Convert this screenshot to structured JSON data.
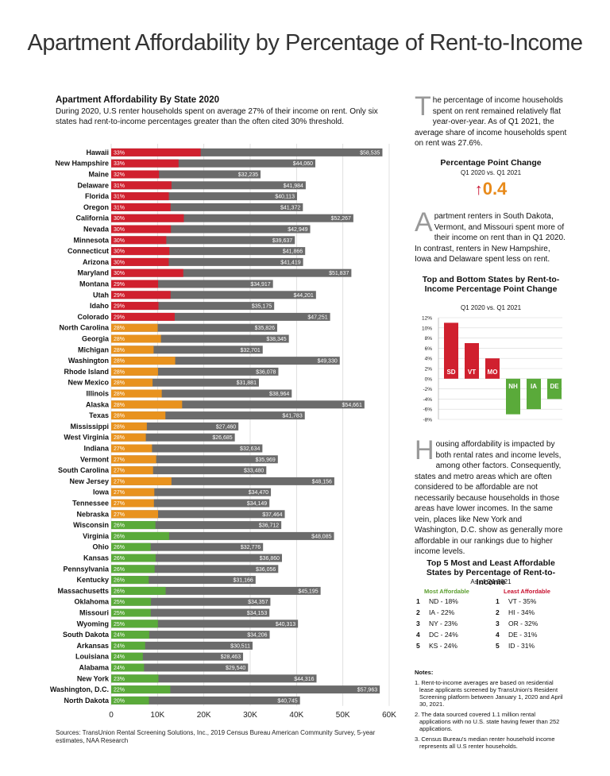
{
  "title": "Apartment Affordability by Percentage of Rent-to-Income",
  "section_title": "Apartment Affordability By State 2020",
  "section_intro": "During 2020, U.S renter households spent on average 27% of their income on rent. Only six states had rent-to-income percentages greater than the often cited 30% threshold.",
  "para1": {
    "drop": "T",
    "text": "he percentage of income households spent on rent remained relatively flat year-over-year. As of Q1 2021, the average share of income households spent on rent was 27.6%."
  },
  "point_change": {
    "title": "Percentage Point Change",
    "sub": "Q1 2020 vs. Q1 2021",
    "arrow": "↑",
    "value": "0.4"
  },
  "para2": {
    "drop": "A",
    "text": "partment renters in South Dakota, Vermont, and Missouri spent more of their income on rent than in Q1 2020. In contrast, renters in New Hampshire, Iowa and Delaware spent less on rent."
  },
  "para3": {
    "drop": "H",
    "text": "ousing affordability is impacted by both rental rates and income levels, among other factors. Consequently, states and metro areas which are often considered to be affordable are not necessarily because households in those areas have lower incomes. In the same vein, places like New York and Washington, D.C. show as generally more affordable in our rankings due to higher income levels."
  },
  "top5": {
    "title": "Top 5 Most and Least Affordable States by Percentage of Rent-to-Income",
    "sub": "As of Q1 2021",
    "most_label": "Most Affordable",
    "least_label": "Least Affordable",
    "most": [
      {
        "rank": "1",
        "text": "ND  -  18%"
      },
      {
        "rank": "2",
        "text": "IA  -  22%"
      },
      {
        "rank": "3",
        "text": "NY  -  23%"
      },
      {
        "rank": "4",
        "text": "DC  -  24%"
      },
      {
        "rank": "5",
        "text": "KS  -  24%"
      }
    ],
    "least": [
      {
        "rank": "1",
        "text": "VT  -  35%"
      },
      {
        "rank": "2",
        "text": "HI  -  34%"
      },
      {
        "rank": "3",
        "text": "OR  -  32%"
      },
      {
        "rank": "4",
        "text": "DE  -  31%"
      },
      {
        "rank": "5",
        "text": "ID  -  31%"
      }
    ]
  },
  "notes": {
    "heading": "Notes:",
    "items": [
      "1. Rent-to-income averages are based on residential lease applicants screened by TransUnion's Resident Screening platform between January 1, 2020 and April 30, 2021.",
      "2. The data sourced covered 1.1 million rental applications with no U.S. state having fewer than 252 applications.",
      "3. Census Bureau's median renter household income represents all U.S renter households."
    ]
  },
  "sources": "Sources: TransUnion Rental Screening Solutions, Inc., 2019 Census Bureau American Community Survey, 5-year estimates, NAA Research",
  "colors": {
    "red": "#d0202e",
    "orange": "#e8921e",
    "green": "#5aaa3a",
    "gray": "#6b6b6b"
  },
  "chart_data": [
    {
      "type": "bar",
      "orientation": "horizontal",
      "xlim": [
        0,
        60000
      ],
      "x_ticks": [
        "0",
        "10K",
        "20K",
        "30K",
        "40K",
        "50K",
        "60K"
      ],
      "grid": true,
      "series": [
        {
          "metric": "rent-to-income share",
          "values_key": "pct"
        },
        {
          "metric": "median renter household income",
          "values_key": "income"
        }
      ],
      "rows": [
        {
          "state": "Hawaii",
          "pct": "33%",
          "income": 58535,
          "income_label": "$58,535",
          "color": "red"
        },
        {
          "state": "New Hampshire",
          "pct": "33%",
          "income": 44060,
          "income_label": "$44,060",
          "color": "red"
        },
        {
          "state": "Maine",
          "pct": "32%",
          "income": 32235,
          "income_label": "$32,235",
          "color": "red"
        },
        {
          "state": "Delaware",
          "pct": "31%",
          "income": 41984,
          "income_label": "$41,984",
          "color": "red"
        },
        {
          "state": "Florida",
          "pct": "31%",
          "income": 40113,
          "income_label": "$40,113",
          "color": "red"
        },
        {
          "state": "Oregon",
          "pct": "31%",
          "income": 41372,
          "income_label": "$41,372",
          "color": "red"
        },
        {
          "state": "California",
          "pct": "30%",
          "income": 52267,
          "income_label": "$52,267",
          "color": "red"
        },
        {
          "state": "Nevada",
          "pct": "30%",
          "income": 42949,
          "income_label": "$42,949",
          "color": "red"
        },
        {
          "state": "Minnesota",
          "pct": "30%",
          "income": 39637,
          "income_label": "$39,637",
          "color": "red"
        },
        {
          "state": "Connecticut",
          "pct": "30%",
          "income": 41866,
          "income_label": "$41,866",
          "color": "red"
        },
        {
          "state": "Arizona",
          "pct": "30%",
          "income": 41419,
          "income_label": "$41,419",
          "color": "red"
        },
        {
          "state": "Maryland",
          "pct": "30%",
          "income": 51837,
          "income_label": "$51,837",
          "color": "red"
        },
        {
          "state": "Montana",
          "pct": "29%",
          "income": 34917,
          "income_label": "$34,917",
          "color": "red"
        },
        {
          "state": "Utah",
          "pct": "29%",
          "income": 44201,
          "income_label": "$44,201",
          "color": "red"
        },
        {
          "state": "Idaho",
          "pct": "29%",
          "income": 35175,
          "income_label": "$35,175",
          "color": "red"
        },
        {
          "state": "Colorado",
          "pct": "29%",
          "income": 47251,
          "income_label": "$47,251",
          "color": "red"
        },
        {
          "state": "North Carolina",
          "pct": "28%",
          "income": 35826,
          "income_label": "$35,826",
          "color": "orange"
        },
        {
          "state": "Georgia",
          "pct": "28%",
          "income": 38345,
          "income_label": "$38,345",
          "color": "orange"
        },
        {
          "state": "Michigan",
          "pct": "28%",
          "income": 32701,
          "income_label": "$32,701",
          "color": "orange"
        },
        {
          "state": "Washington",
          "pct": "28%",
          "income": 49330,
          "income_label": "$49,330",
          "color": "orange"
        },
        {
          "state": "Rhode Island",
          "pct": "28%",
          "income": 36078,
          "income_label": "$36,078",
          "color": "orange"
        },
        {
          "state": "New Mexico",
          "pct": "28%",
          "income": 31881,
          "income_label": "$31,881",
          "color": "orange"
        },
        {
          "state": "Illinois",
          "pct": "28%",
          "income": 38964,
          "income_label": "$38,964",
          "color": "orange"
        },
        {
          "state": "Alaska",
          "pct": "28%",
          "income": 54661,
          "income_label": "$54,661",
          "color": "orange"
        },
        {
          "state": "Texas",
          "pct": "28%",
          "income": 41783,
          "income_label": "$41,783",
          "color": "orange"
        },
        {
          "state": "Mississippi",
          "pct": "28%",
          "income": 27460,
          "income_label": "$27,460",
          "color": "orange"
        },
        {
          "state": "West Virginia",
          "pct": "28%",
          "income": 26685,
          "income_label": "$26,685",
          "color": "orange"
        },
        {
          "state": "Indiana",
          "pct": "27%",
          "income": 32634,
          "income_label": "$32,634",
          "color": "orange"
        },
        {
          "state": "Vermont",
          "pct": "27%",
          "income": 35969,
          "income_label": "$35,969",
          "color": "orange"
        },
        {
          "state": "South Carolina",
          "pct": "27%",
          "income": 33480,
          "income_label": "$33,480",
          "color": "orange"
        },
        {
          "state": "New Jersey",
          "pct": "27%",
          "income": 48156,
          "income_label": "$48,156",
          "color": "orange"
        },
        {
          "state": "Iowa",
          "pct": "27%",
          "income": 34470,
          "income_label": "$34,470",
          "color": "orange"
        },
        {
          "state": "Tennessee",
          "pct": "27%",
          "income": 34149,
          "income_label": "$34,149",
          "color": "orange"
        },
        {
          "state": "Nebraska",
          "pct": "27%",
          "income": 37464,
          "income_label": "$37,464",
          "color": "orange"
        },
        {
          "state": "Wisconsin",
          "pct": "26%",
          "income": 36712,
          "income_label": "$36,712",
          "color": "green"
        },
        {
          "state": "Virginia",
          "pct": "26%",
          "income": 48085,
          "income_label": "$48,085",
          "color": "green"
        },
        {
          "state": "Ohio",
          "pct": "26%",
          "income": 32776,
          "income_label": "$32,776",
          "color": "green"
        },
        {
          "state": "Kansas",
          "pct": "26%",
          "income": 36860,
          "income_label": "$36,860",
          "color": "green"
        },
        {
          "state": "Pennsylvania",
          "pct": "26%",
          "income": 36056,
          "income_label": "$36,056",
          "color": "green"
        },
        {
          "state": "Kentucky",
          "pct": "26%",
          "income": 31166,
          "income_label": "$31,166",
          "color": "green"
        },
        {
          "state": "Massachusetts",
          "pct": "26%",
          "income": 45195,
          "income_label": "$45,195",
          "color": "green"
        },
        {
          "state": "Oklahoma",
          "pct": "25%",
          "income": 34357,
          "income_label": "$34,357",
          "color": "green"
        },
        {
          "state": "Missouri",
          "pct": "25%",
          "income": 34153,
          "income_label": "$34,153",
          "color": "green"
        },
        {
          "state": "Wyoming",
          "pct": "25%",
          "income": 40313,
          "income_label": "$40,313",
          "color": "green"
        },
        {
          "state": "South Dakota",
          "pct": "24%",
          "income": 34206,
          "income_label": "$34,206",
          "color": "green"
        },
        {
          "state": "Arkansas",
          "pct": "24%",
          "income": 30511,
          "income_label": "$30,511",
          "color": "green"
        },
        {
          "state": "Louisiana",
          "pct": "24%",
          "income": 28463,
          "income_label": "$28,463",
          "color": "green"
        },
        {
          "state": "Alabama",
          "pct": "24%",
          "income": 29540,
          "income_label": "$29,540",
          "color": "green"
        },
        {
          "state": "New York",
          "pct": "23%",
          "income": 44316,
          "income_label": "$44,316",
          "color": "green"
        },
        {
          "state": "Washington, D.C.",
          "pct": "22%",
          "income": 57963,
          "income_label": "$57,963",
          "color": "green"
        },
        {
          "state": "North Dakota",
          "pct": "20%",
          "income": 40745,
          "income_label": "$40,745",
          "color": "green"
        }
      ]
    },
    {
      "type": "bar",
      "title": "Top and Bottom States by Rent-to-Income Percentage Point Change",
      "subtitle": "Q1 2020 vs. Q1 2021",
      "categories": [
        "SD",
        "VT",
        "MO",
        "NH",
        "IA",
        "DE"
      ],
      "values": [
        11,
        7,
        4,
        -7,
        -6,
        -4
      ],
      "colors": [
        "red",
        "red",
        "red",
        "green",
        "green",
        "green"
      ],
      "ylim": [
        -8,
        12
      ],
      "y_ticks": [
        "12%",
        "10%",
        "8%",
        "6%",
        "4%",
        "2%",
        "0%",
        "-2%",
        "-4%",
        "-6%",
        "-8%"
      ],
      "grid": true
    }
  ]
}
